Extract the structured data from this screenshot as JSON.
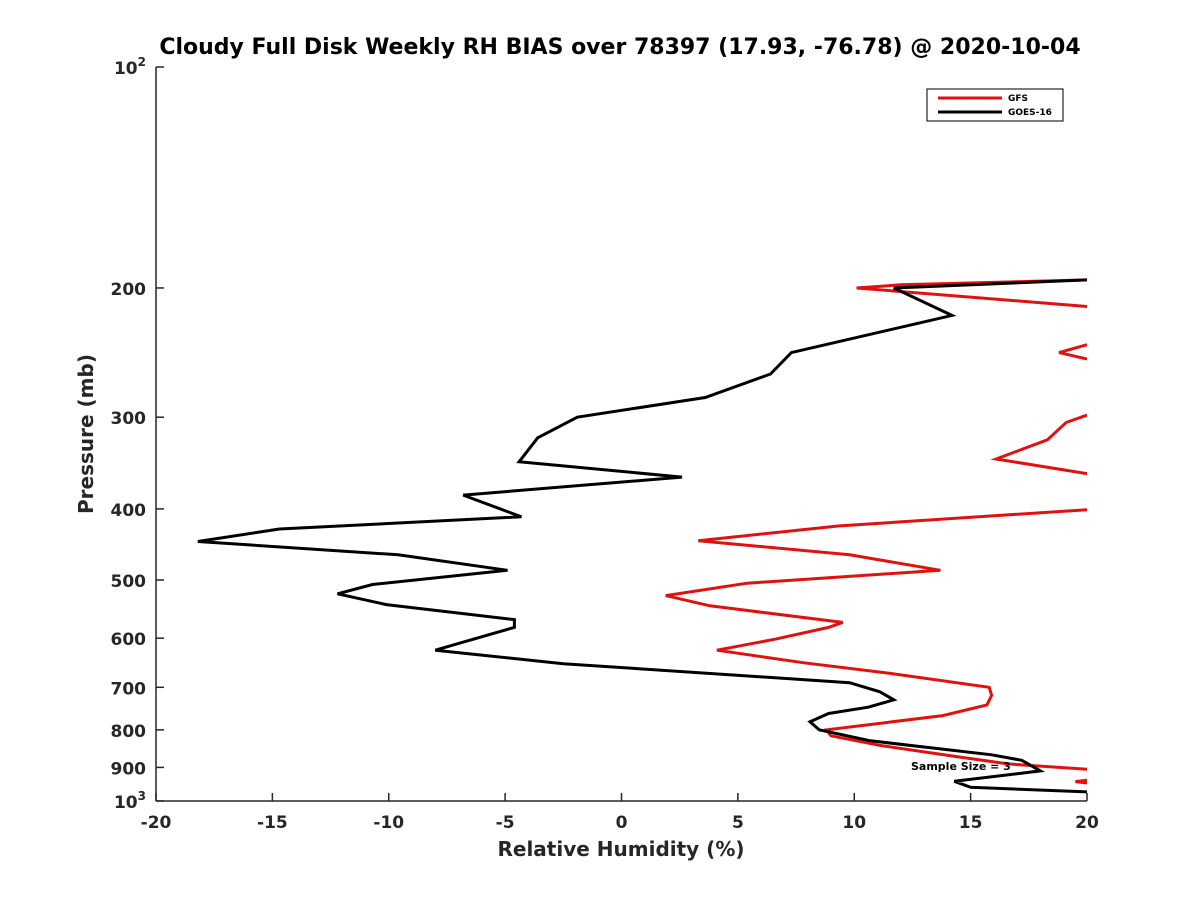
{
  "chart_data": {
    "type": "line",
    "title": "Cloudy Full Disk Weekly RH BIAS over 78397 (17.93, -76.78) @ 2020-10-04",
    "xlabel": "Relative Humidity (%)",
    "ylabel": "Pressure (mb)",
    "xlim": [
      -20,
      20
    ],
    "ylim": [
      100,
      1000
    ],
    "yscale": "log",
    "y_reversed": true,
    "grid": false,
    "legend_position": "top-right",
    "x_ticks": [
      "-20",
      "-15",
      "-10",
      "-5",
      "0",
      "5",
      "10",
      "15",
      "20"
    ],
    "y_ticks": [
      {
        "value": 100,
        "base": "10",
        "exp": "2"
      },
      {
        "value": 200,
        "label": "200"
      },
      {
        "value": 300,
        "label": "300"
      },
      {
        "value": 400,
        "label": "400"
      },
      {
        "value": 500,
        "label": "500"
      },
      {
        "value": 600,
        "label": "600"
      },
      {
        "value": 700,
        "label": "700"
      },
      {
        "value": 800,
        "label": "800"
      },
      {
        "value": 900,
        "label": "900"
      },
      {
        "value": 1000,
        "base": "10",
        "exp": "3"
      }
    ],
    "annotation": "Sample Size = 3",
    "series": [
      {
        "name": "GFS",
        "color": "#e0120f",
        "points": [
          [
            20,
            212
          ],
          [
            10.1,
            200
          ],
          [
            12,
            198
          ],
          [
            20,
            195
          ]
        ],
        "segments": [
          [
            [
              20,
              212
            ],
            [
              10.1,
              200
            ],
            [
              12,
              198
            ],
            [
              20,
              195
            ]
          ],
          [
            [
              20,
              250
            ],
            [
              18.8,
              245
            ],
            [
              20,
              239
            ]
          ],
          [
            [
              20,
              358
            ],
            [
              16.1,
              342
            ],
            [
              18.3,
              322
            ],
            [
              19.1,
              305
            ],
            [
              20,
              298
            ]
          ],
          [
            [
              20,
              401
            ],
            [
              9.3,
              422
            ],
            [
              3.3,
              442
            ],
            [
              9.8,
              462
            ],
            [
              13.7,
              485
            ],
            [
              5.4,
              505
            ],
            [
              1.9,
              525
            ],
            [
              3.8,
              542
            ],
            [
              9.5,
              571
            ],
            [
              8.9,
              580
            ],
            [
              6.6,
              602
            ],
            [
              4.1,
              623
            ],
            [
              7.8,
              648
            ],
            [
              11.5,
              670
            ],
            [
              15.8,
              700
            ],
            [
              15.9,
              718
            ],
            [
              15.7,
              740
            ],
            [
              13.8,
              765
            ],
            [
              8.8,
              800
            ],
            [
              9.0,
              815
            ],
            [
              11.1,
              840
            ],
            [
              14.4,
              870
            ],
            [
              16.6,
              890
            ],
            [
              20,
              905
            ]
          ],
          [
            [
              20,
              937
            ],
            [
              19.5,
              941
            ],
            [
              20,
              945
            ]
          ]
        ]
      },
      {
        "name": "GOES-16",
        "color": "#000000",
        "segments": [
          [
            [
              20,
              195
            ],
            [
              11.7,
              200
            ],
            [
              14.2,
              218
            ],
            [
              7.3,
              245
            ],
            [
              6.4,
              262
            ],
            [
              3.6,
              282
            ],
            [
              -1.9,
              300
            ],
            [
              -3.6,
              320
            ],
            [
              -4.4,
              345
            ],
            [
              2.6,
              362
            ],
            [
              -6.8,
              383
            ],
            [
              -4.3,
              410
            ],
            [
              -14.7,
              426
            ],
            [
              -18.2,
              443
            ],
            [
              -9.6,
              462
            ],
            [
              -4.9,
              485
            ],
            [
              -10.7,
              507
            ],
            [
              -12.2,
              522
            ],
            [
              -10.1,
              540
            ],
            [
              -4.6,
              566
            ],
            [
              -4.6,
              580
            ],
            [
              -7.0,
              610
            ],
            [
              -8.0,
              623
            ],
            [
              -2.5,
              650
            ],
            [
              9.8,
              690
            ],
            [
              11.1,
              710
            ],
            [
              11.7,
              728
            ],
            [
              10.6,
              745
            ],
            [
              8.9,
              760
            ],
            [
              8.1,
              780
            ],
            [
              8.5,
              800
            ],
            [
              10.7,
              828
            ],
            [
              15.9,
              865
            ],
            [
              17.2,
              880
            ],
            [
              18.0,
              910
            ],
            [
              14.3,
              940
            ],
            [
              15.0,
              958
            ],
            [
              20,
              972
            ]
          ]
        ]
      }
    ]
  }
}
